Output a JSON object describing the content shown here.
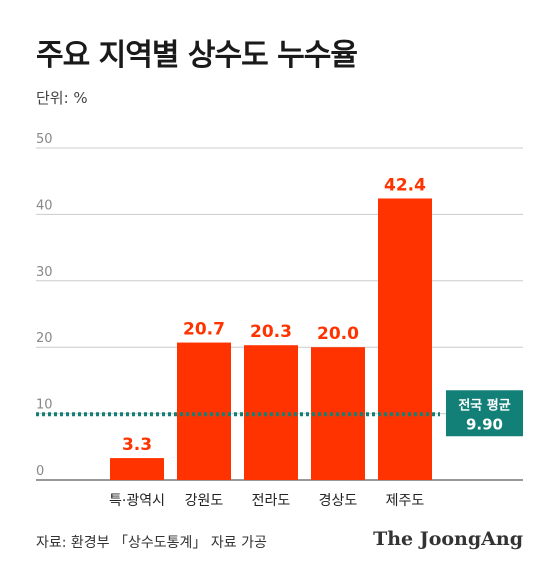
{
  "title": "주요 지역별 상수도 누수율",
  "unit_label": "단위: %",
  "source": "자료: 환경부 「상수도통계」 자료 가공",
  "brand": "The JoongAng",
  "colors": {
    "bar": "#ff3300",
    "value_label": "#ff3300",
    "average": "#138078",
    "grid": "#cccccc"
  },
  "chart_data": {
    "type": "bar",
    "categories": [
      "특·광역시",
      "강원도",
      "전라도",
      "경상도",
      "제주도"
    ],
    "values": [
      3.3,
      20.7,
      20.3,
      20.0,
      42.4
    ],
    "value_labels": [
      "3.3",
      "20.7",
      "20.3",
      "20.0",
      "42.4"
    ],
    "ylim": [
      0,
      50
    ],
    "yticks": [
      0,
      10,
      20,
      30,
      40,
      50
    ],
    "grid": true,
    "average": {
      "label": "전국 평균",
      "value": 9.9,
      "value_label": "9.90"
    }
  }
}
